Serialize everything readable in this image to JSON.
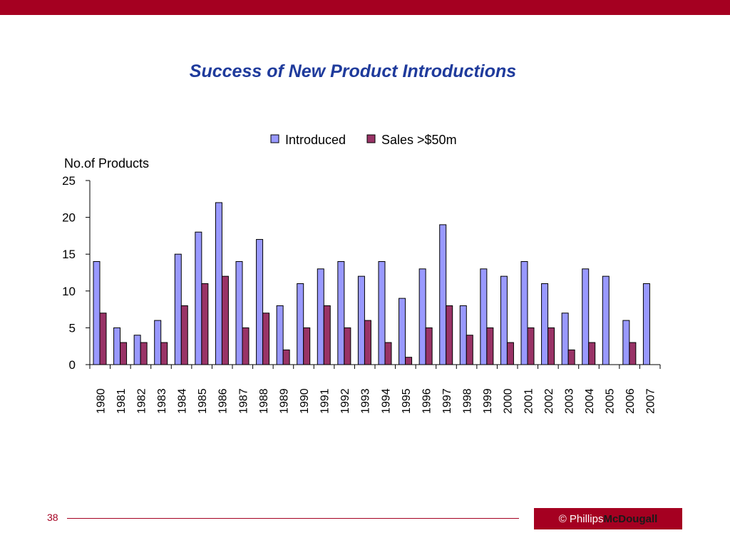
{
  "slide": {
    "title": "Success of New Product Introductions",
    "page_number": "38",
    "logo": {
      "copyright": "©",
      "part1": "Phillips",
      "part2": "McDougall"
    }
  },
  "colors": {
    "brand": "#a50021",
    "title": "#1f3b9c",
    "introduced": "#9999ff",
    "sales": "#993366"
  },
  "chart_data": {
    "type": "bar",
    "ylabel": "No.of Products",
    "xlabel": "",
    "ylim": [
      0,
      25
    ],
    "yticks": [
      0,
      5,
      10,
      15,
      20,
      25
    ],
    "legend_position": "top-center",
    "grid": false,
    "categories": [
      "1980",
      "1981",
      "1982",
      "1983",
      "1984",
      "1985",
      "1986",
      "1987",
      "1988",
      "1989",
      "1990",
      "1991",
      "1992",
      "1993",
      "1994",
      "1995",
      "1996",
      "1997",
      "1998",
      "1999",
      "2000",
      "2001",
      "2002",
      "2003",
      "2004",
      "2005",
      "2006",
      "2007"
    ],
    "series": [
      {
        "name": "Introduced",
        "values": [
          14,
          5,
          4,
          6,
          15,
          18,
          22,
          14,
          17,
          8,
          11,
          13,
          14,
          12,
          14,
          9,
          13,
          19,
          8,
          13,
          12,
          14,
          11,
          7,
          13,
          12,
          6,
          11
        ]
      },
      {
        "name": "Sales >$50m",
        "values": [
          7,
          3,
          3,
          3,
          8,
          11,
          12,
          5,
          7,
          2,
          5,
          8,
          5,
          6,
          3,
          1,
          5,
          8,
          4,
          5,
          3,
          5,
          5,
          2,
          3,
          0,
          3,
          0
        ]
      }
    ]
  }
}
